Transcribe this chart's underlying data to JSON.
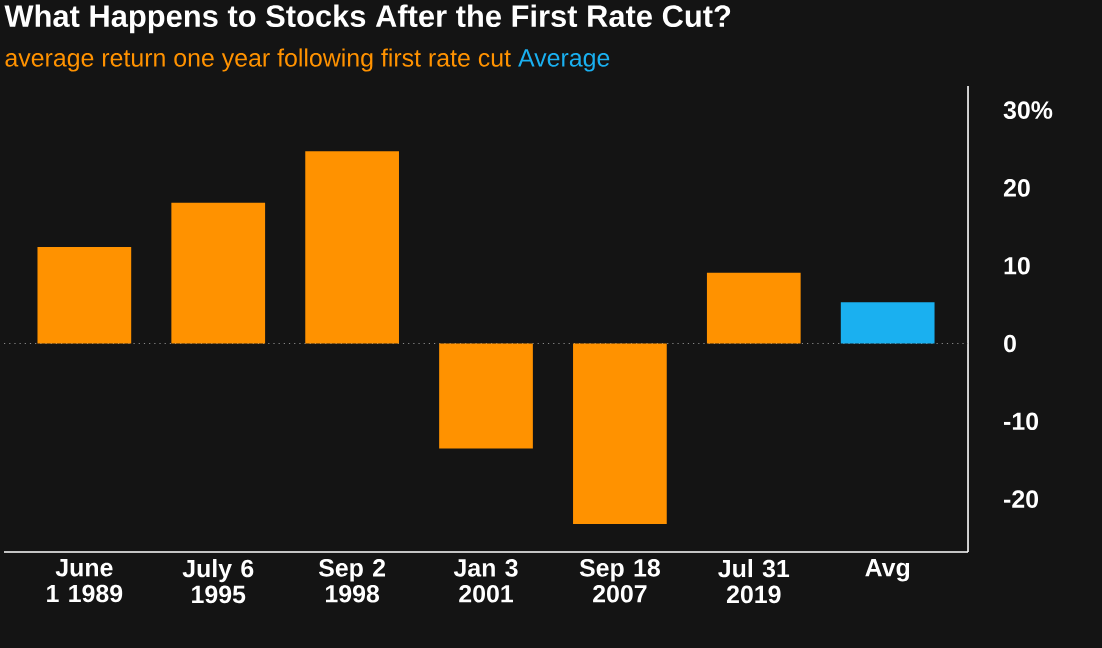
{
  "chart_data": {
    "type": "bar",
    "title": "What Happens to Stocks After the First Rate Cut?",
    "categories": [
      "June 1 1989",
      "July 6 1995",
      "Sep 2 1998",
      "Jan 3 2001",
      "Sep 18 2007",
      "Jul 31 2019",
      "Avg"
    ],
    "series": [
      {
        "name": "average return one year following first rate cut",
        "color": "#ff9200",
        "values": [
          12.4,
          18.1,
          24.7,
          -13.5,
          -23.2,
          9.1,
          null
        ]
      },
      {
        "name": "Average",
        "color": "#1ab0f0",
        "values": [
          null,
          null,
          null,
          null,
          null,
          null,
          5.3
        ]
      }
    ],
    "ylim": [
      -26.8,
      33.1
    ],
    "yticks": [
      {
        "value": -20,
        "label": "-20"
      },
      {
        "value": -10,
        "label": "-10"
      },
      0,
      10,
      20,
      {
        "value": 30,
        "label": "30%"
      }
    ],
    "ref_lines": [
      {
        "axis": "y",
        "value": 0,
        "color": "#8a8a8a",
        "line_style": "dotted"
      }
    ],
    "grid": false,
    "legend": "top left"
  }
}
